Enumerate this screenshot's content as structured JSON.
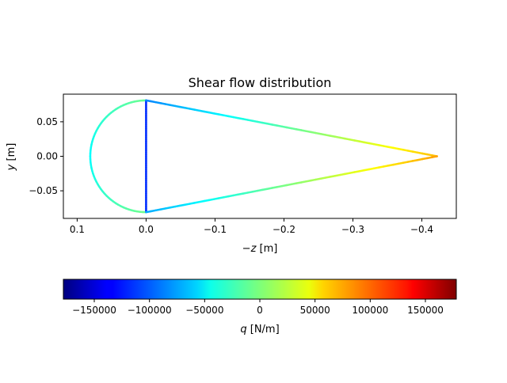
{
  "chart_data": {
    "type": "line",
    "title": "Shear flow distribution",
    "xlabel_prefix": "−",
    "xlabel_var": "z",
    "xlabel_unit": " [m]",
    "ylabel_var": "y",
    "ylabel_unit": " [m]",
    "xlim": [
      0.12,
      -0.45
    ],
    "ylim": [
      -0.09,
      0.09
    ],
    "xticks": [
      0.1,
      0.0,
      -0.1,
      -0.2,
      -0.3,
      -0.4
    ],
    "xtick_labels": [
      "0.1",
      "0.0",
      "−0.1",
      "−0.2",
      "−0.3",
      "−0.4"
    ],
    "yticks": [
      0.05,
      0.0,
      -0.05
    ],
    "ytick_labels": [
      "0.05",
      "0.00",
      "−0.05"
    ],
    "colormap": "jet",
    "colorbar": {
      "range": [
        -178000,
        178000
      ],
      "ticks": [
        -150000,
        -100000,
        -50000,
        0,
        50000,
        100000,
        150000
      ],
      "tick_labels": [
        "−150000",
        "−100000",
        "−50000",
        "0",
        "50000",
        "100000",
        "150000"
      ],
      "label_var": "q",
      "label_unit": " [N/m]"
    },
    "geometry": {
      "leading_edge_radius": 0.081,
      "spar_z": 0.0,
      "trailing_edge_z": -0.422
    },
    "series": [
      {
        "segment": "semicircle",
        "z": [
          0.0,
          0.081,
          0.0
        ],
        "y": [
          0.081,
          0.0,
          -0.081
        ],
        "q": [
          -5000,
          -45000,
          -5000
        ]
      },
      {
        "segment": "spar",
        "z": [
          0.0,
          0.0
        ],
        "y": [
          0.081,
          -0.081
        ],
        "q": [
          -118000,
          -118000
        ]
      },
      {
        "segment": "upper-skin",
        "z": [
          0.0,
          -0.422
        ],
        "y": [
          0.081,
          0.0
        ],
        "q": [
          -88000,
          68000
        ]
      },
      {
        "segment": "lower-skin",
        "z": [
          0.0,
          -0.422
        ],
        "y": [
          -0.081,
          0.0
        ],
        "q": [
          -75000,
          78000
        ]
      }
    ]
  }
}
